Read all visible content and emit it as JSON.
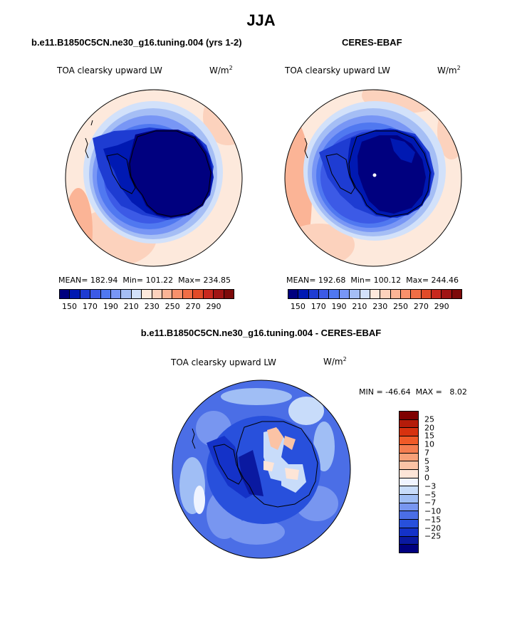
{
  "page": {
    "title": "JJA"
  },
  "panels": {
    "model": {
      "title": "b.e11.B1850C5CN.ne30_g16.tuning.004 (yrs 1-2)",
      "variable": "TOA clearsky upward LW",
      "units_base": "W/m",
      "units_exp": "2",
      "stats": "MEAN= 182.94  Min= 101.22  Max= 234.85",
      "mean": 182.94,
      "min": 101.22,
      "max": 234.85
    },
    "obs": {
      "title": "CERES-EBAF",
      "variable": "TOA clearsky upward LW",
      "units_base": "W/m",
      "units_exp": "2",
      "stats": "MEAN= 192.68  Min= 100.12  Max= 244.46",
      "mean": 192.68,
      "min": 100.12,
      "max": 244.46
    },
    "diff": {
      "title": "b.e11.B1850C5CN.ne30_g16.tuning.004 - CERES-EBAF",
      "variable": "TOA clearsky upward LW",
      "units_base": "W/m",
      "units_exp": "2",
      "stats": "MIN = -46.64  MAX =   8.02",
      "min": -46.64,
      "max": 8.02
    }
  },
  "colorbar_abs": {
    "colors": [
      "#00007f",
      "#0019b2",
      "#1e3cd2",
      "#3c5ae6",
      "#5078f0",
      "#7896f5",
      "#a5bef5",
      "#d2e1fa",
      "#fde9dc",
      "#fcd2bd",
      "#fbb496",
      "#f8916c",
      "#f06e46",
      "#e14b28",
      "#c8281e",
      "#a01414",
      "#7d0a0a"
    ],
    "tick_labels": [
      "150",
      "170",
      "190",
      "210",
      "230",
      "250",
      "270",
      "290"
    ]
  },
  "colorbar_diff": {
    "colors": [
      "#7f0000",
      "#b41c0a",
      "#d7320f",
      "#f05a28",
      "#f57d50",
      "#f8a078",
      "#fbc3a5",
      "#fde5d7",
      "#f0f4ff",
      "#c8dcfa",
      "#a0bef5",
      "#7896f0",
      "#4b6ee6",
      "#2850dc",
      "#1432c8",
      "#0a19a0",
      "#00007f"
    ],
    "tick_labels": [
      "25",
      "20",
      "15",
      "10",
      "7",
      "5",
      "3",
      "0",
      "-3",
      "-5",
      "-7",
      "-10",
      "-15",
      "-20",
      "-25"
    ]
  }
}
